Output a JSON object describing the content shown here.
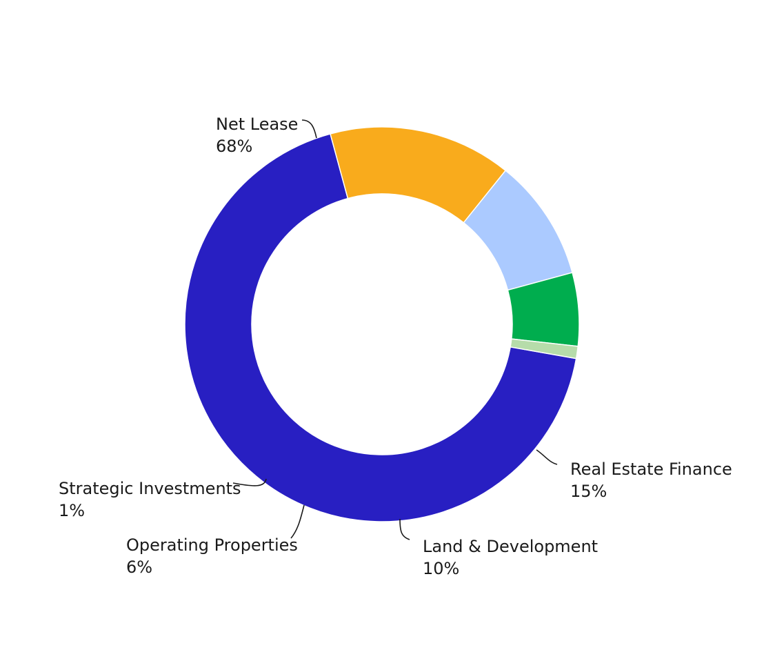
{
  "chart_data": {
    "type": "pie",
    "variant": "donut",
    "title": "",
    "series": [
      {
        "name": "Net Lease",
        "value": 68,
        "value_label": "68%",
        "color": "#281fc2"
      },
      {
        "name": "Real Estate Finance",
        "value": 15,
        "value_label": "15%",
        "color": "#f9ab1c"
      },
      {
        "name": "Land & Development",
        "value": 10,
        "value_label": "10%",
        "color": "#abcaff"
      },
      {
        "name": "Operating Properties",
        "value": 6,
        "value_label": "6%",
        "color": "#00ad4e"
      },
      {
        "name": "Strategic Investments",
        "value": 1,
        "value_label": "1%",
        "color": "#b6dcaa"
      }
    ],
    "legend": "none",
    "labels": "outside with leader lines"
  }
}
